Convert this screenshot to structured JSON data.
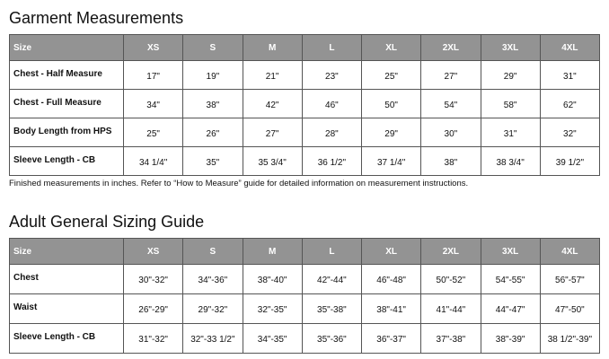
{
  "garment": {
    "title": "Garment Measurements",
    "headers": [
      "Size",
      "XS",
      "S",
      "M",
      "L",
      "XL",
      "2XL",
      "3XL",
      "4XL"
    ],
    "rows": [
      {
        "label": "Chest - Half Measure",
        "values": [
          "17\"",
          "19\"",
          "21\"",
          "23\"",
          "25\"",
          "27\"",
          "29\"",
          "31\""
        ]
      },
      {
        "label": "Chest - Full Measure",
        "values": [
          "34\"",
          "38\"",
          "42\"",
          "46\"",
          "50\"",
          "54\"",
          "58\"",
          "62\""
        ]
      },
      {
        "label": "Body Length from HPS",
        "values": [
          "25\"",
          "26\"",
          "27\"",
          "28\"",
          "29\"",
          "30\"",
          "31\"",
          "32\""
        ]
      },
      {
        "label": "Sleeve Length - CB",
        "values": [
          "34 1/4\"",
          "35\"",
          "35 3/4\"",
          "36 1/2\"",
          "37 1/4\"",
          "38\"",
          "38 3/4\"",
          "39 1/2\""
        ]
      }
    ],
    "note": "Finished measurements in inches. Refer to “How to Measure” guide for detailed information on measurement instructions."
  },
  "sizing": {
    "title": "Adult General Sizing Guide",
    "headers": [
      "Size",
      "XS",
      "S",
      "M",
      "L",
      "XL",
      "2XL",
      "3XL",
      "4XL"
    ],
    "rows": [
      {
        "label": "Chest",
        "values": [
          "30\"-32\"",
          "34\"-36\"",
          "38\"-40\"",
          "42\"-44\"",
          "46\"-48\"",
          "50\"-52\"",
          "54\"-55\"",
          "56\"-57\""
        ]
      },
      {
        "label": "Waist",
        "values": [
          "26\"-29\"",
          "29\"-32\"",
          "32\"-35\"",
          "35\"-38\"",
          "38\"-41\"",
          "41\"-44\"",
          "44\"-47\"",
          "47\"-50\""
        ]
      },
      {
        "label": "Sleeve Length - CB",
        "values": [
          "31\"-32\"",
          "32\"-33 1/2\"",
          "34\"-35\"",
          "35\"-36\"",
          "36\"-37\"",
          "37\"-38\"",
          "38\"-39\"",
          "38 1/2\"-39\""
        ]
      }
    ]
  },
  "colors": {
    "header_bg": "#939393",
    "header_text": "#ffffff",
    "border": "#555555"
  }
}
